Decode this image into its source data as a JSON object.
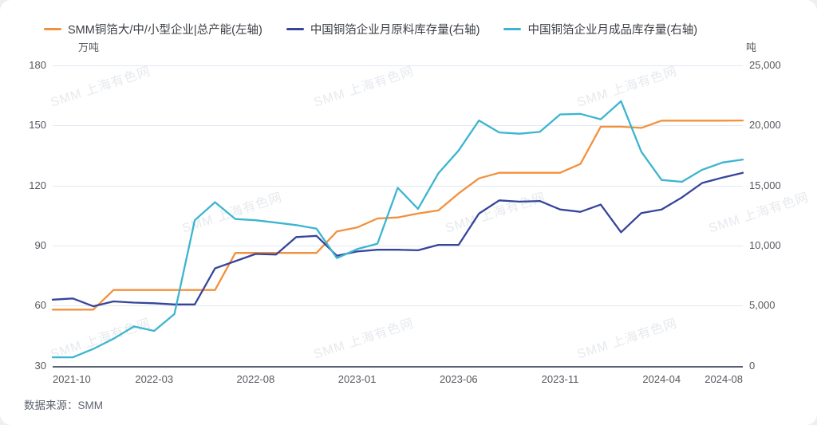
{
  "legend": {
    "items": [
      {
        "label": "SMM铜箔大/中/小型企业|总产能(左轴)",
        "color": "#F2913D"
      },
      {
        "label": "中国铜箔企业月原料库存量(右轴)",
        "color": "#36459B"
      },
      {
        "label": "中国铜箔企业月成品库存量(右轴)",
        "color": "#3CB5CF"
      }
    ]
  },
  "axes": {
    "left": {
      "title": "万吨",
      "ticks": [
        "180",
        "150",
        "120",
        "90",
        "60",
        "30"
      ]
    },
    "right": {
      "title": "吨",
      "ticks": [
        "25,000",
        "20,000",
        "15,000",
        "10,000",
        "5,000",
        "0"
      ]
    },
    "x": {
      "labels": [
        "2021-10",
        "2022-03",
        "2022-08",
        "2023-01",
        "2023-06",
        "2023-11",
        "2024-04",
        "2024-08"
      ],
      "label_indices": [
        0,
        5,
        10,
        15,
        20,
        25,
        30,
        34
      ]
    }
  },
  "chart_data": {
    "type": "line",
    "title": "",
    "xlabel": "",
    "ylabel_left": "万吨",
    "ylabel_right": "吨",
    "ylim_left": [
      30,
      180
    ],
    "ylim_right": [
      0,
      25000
    ],
    "grid": true,
    "legend_position": "top",
    "x": [
      "2021-10",
      "2021-11",
      "2021-12",
      "2022-01",
      "2022-02",
      "2022-03",
      "2022-04",
      "2022-05",
      "2022-06",
      "2022-07",
      "2022-08",
      "2022-09",
      "2022-10",
      "2022-11",
      "2022-12",
      "2023-01",
      "2023-02",
      "2023-03",
      "2023-04",
      "2023-05",
      "2023-06",
      "2023-07",
      "2023-08",
      "2023-09",
      "2023-10",
      "2023-11",
      "2023-12",
      "2024-01",
      "2024-02",
      "2024-03",
      "2024-04",
      "2024-05",
      "2024-06",
      "2024-07",
      "2024-08"
    ],
    "series": [
      {
        "name": "SMM铜箔大/中/小型企业|总产能(左轴)",
        "axis": "left",
        "unit": "万吨",
        "color": "#F2913D",
        "values": [
          58,
          58,
          58,
          67.8,
          67.8,
          67.8,
          67.8,
          67.8,
          67.8,
          86.3,
          86.3,
          86.3,
          86.3,
          86.3,
          97,
          99,
          103.5,
          104,
          106,
          107.5,
          116,
          123.5,
          126.3,
          126.3,
          126.3,
          126.3,
          130.7,
          149.3,
          149.3,
          148.7,
          152.3,
          152.3,
          152.3,
          152.3,
          152.4
        ]
      },
      {
        "name": "中国铜箔企业月原料库存量(右轴)",
        "axis": "right",
        "unit": "吨",
        "color": "#36459B",
        "values": [
          5500,
          5600,
          4950,
          5350,
          5250,
          5200,
          5100,
          5100,
          8100,
          8700,
          9300,
          9250,
          10700,
          10800,
          9150,
          9500,
          9650,
          9650,
          9600,
          10050,
          10050,
          12650,
          13750,
          13650,
          13700,
          13000,
          12800,
          13400,
          11100,
          12700,
          13000,
          14000,
          15200,
          15650,
          16050
        ]
      },
      {
        "name": "中国铜箔企业月成品库存量(右轴)",
        "axis": "right",
        "unit": "吨",
        "color": "#3CB5CF",
        "values": [
          700,
          700,
          1400,
          2250,
          3270,
          2900,
          4300,
          12100,
          13600,
          12200,
          12100,
          11900,
          11700,
          11400,
          8950,
          9700,
          10150,
          14800,
          13050,
          16000,
          17900,
          20400,
          19400,
          19300,
          19450,
          20900,
          20950,
          20500,
          22000,
          17800,
          15450,
          15300,
          16300,
          16900,
          17150
        ]
      }
    ]
  },
  "watermark": {
    "text": "SMM 上海有色网"
  },
  "footer": {
    "source_label": "数据来源：SMM"
  }
}
